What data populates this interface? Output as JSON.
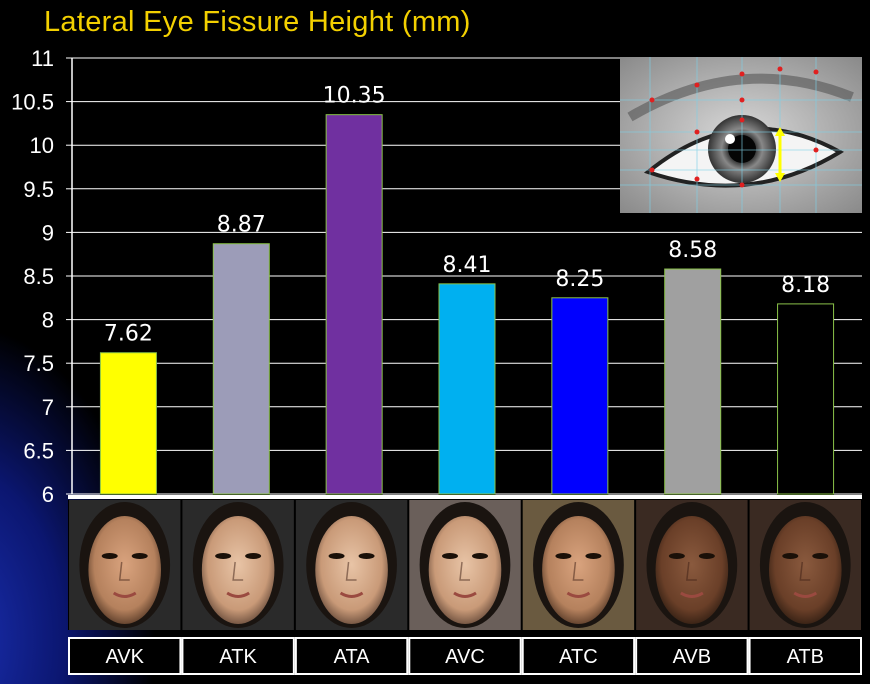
{
  "chart_data": {
    "type": "bar",
    "title": "Lateral Eye Fissure Height (mm)",
    "categories": [
      "AVK",
      "ATK",
      "ATA",
      "AVC",
      "ATC",
      "AVB",
      "ATB"
    ],
    "values": [
      7.62,
      8.87,
      10.35,
      8.41,
      8.25,
      8.58,
      8.18
    ],
    "value_labels": [
      "7.62",
      "8.87",
      "10.35",
      "8.41",
      "8.25",
      "8.58",
      "8.18"
    ],
    "colors": [
      "#ffff00",
      "#9c9cb8",
      "#7030a0",
      "#00b0f0",
      "#0000ff",
      "#a0a0a0",
      "#000000"
    ],
    "ylim": [
      6,
      11
    ],
    "yticks": [
      "6",
      "6.5",
      "7",
      "7.5",
      "8",
      "8.5",
      "9",
      "9.5",
      "10",
      "10.5",
      "11"
    ],
    "grid": true,
    "xlabel": "",
    "ylabel": ""
  },
  "colors": {
    "title": "#f3d000",
    "background": "#000000",
    "gridline": "#ffffff",
    "bar_outline": "#8bc34a"
  }
}
